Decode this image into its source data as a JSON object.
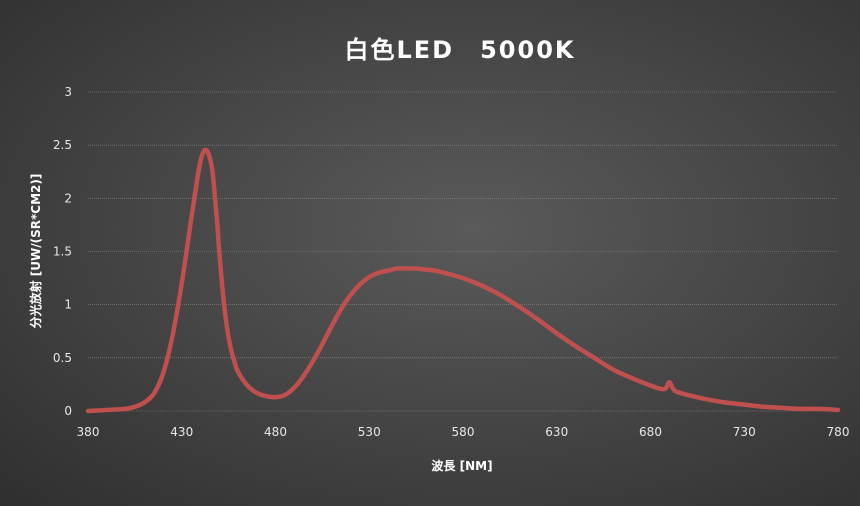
{
  "chart_data": {
    "type": "line",
    "title": "白色LED　5000K",
    "xlabel": "波長 [NM]",
    "ylabel": "分光放射 [UW/(SR*CM2)]",
    "xlim": [
      380,
      780
    ],
    "ylim": [
      0,
      3
    ],
    "xticks": [
      "380",
      "430",
      "480",
      "530",
      "580",
      "630",
      "680",
      "730",
      "780"
    ],
    "yticks": [
      "0",
      "0.5",
      "1",
      "1.5",
      "2",
      "2.5",
      "3"
    ],
    "grid": true,
    "legend": "none",
    "colors": {
      "series": "#c0504d"
    },
    "series": [
      {
        "name": "",
        "x": [
          380,
          390,
          400,
          405,
          410,
          415,
          420,
          425,
          430,
          435,
          438,
          440,
          442,
          444,
          446,
          447,
          448,
          449,
          450,
          452,
          454,
          456,
          458,
          460,
          465,
          470,
          475,
          480,
          485,
          490,
          495,
          500,
          505,
          510,
          515,
          520,
          525,
          530,
          535,
          540,
          545,
          550,
          555,
          560,
          565,
          570,
          580,
          590,
          600,
          610,
          620,
          630,
          640,
          650,
          660,
          670,
          680,
          685,
          688,
          690,
          692,
          694,
          700,
          710,
          720,
          730,
          740,
          750,
          760,
          770,
          780
        ],
        "y": [
          0.0,
          0.01,
          0.02,
          0.04,
          0.08,
          0.16,
          0.35,
          0.7,
          1.2,
          1.8,
          2.15,
          2.35,
          2.45,
          2.43,
          2.3,
          2.15,
          1.95,
          1.75,
          1.5,
          1.1,
          0.8,
          0.6,
          0.47,
          0.37,
          0.24,
          0.17,
          0.14,
          0.13,
          0.15,
          0.22,
          0.33,
          0.47,
          0.63,
          0.8,
          0.96,
          1.09,
          1.19,
          1.26,
          1.3,
          1.32,
          1.34,
          1.34,
          1.34,
          1.33,
          1.32,
          1.3,
          1.25,
          1.18,
          1.09,
          0.98,
          0.86,
          0.73,
          0.61,
          0.5,
          0.39,
          0.31,
          0.24,
          0.21,
          0.21,
          0.27,
          0.21,
          0.18,
          0.15,
          0.11,
          0.08,
          0.06,
          0.04,
          0.03,
          0.02,
          0.02,
          0.01
        ]
      }
    ]
  }
}
